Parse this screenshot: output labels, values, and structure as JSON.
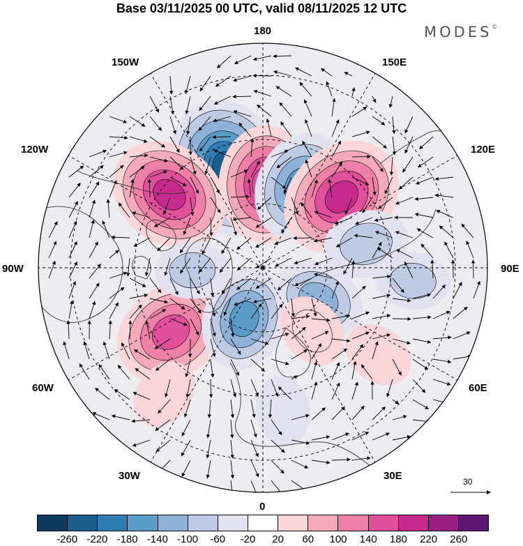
{
  "title": "Base 03/11/2025 00 UTC, valid 08/11/2025 12 UTC",
  "brand": {
    "name": "MODES",
    "mark": "©"
  },
  "longitude_labels": {
    "lon_180": "180",
    "lon_150W": "150W",
    "lon_150E": "150E",
    "lon_120W": "120W",
    "lon_120E": "120E",
    "lon_90W": "90W",
    "lon_90E": "90E",
    "lon_60W": "60W",
    "lon_60E": "60E",
    "lon_30W": "30W",
    "lon_30E": "30E",
    "lon_0": "0"
  },
  "reference_vector": {
    "label": "30"
  },
  "colorbar": {
    "colors": [
      "#0e3b5e",
      "#1b5e8e",
      "#2f7db4",
      "#5a9cc8",
      "#8fb3d8",
      "#bfcbe4",
      "#e3e2f0",
      "#ffffff",
      "#fbd6d8",
      "#f4aab8",
      "#ee7fa6",
      "#e0509a",
      "#c52a8c",
      "#991f84",
      "#5e1775"
    ],
    "ticks": [
      "-260",
      "-220",
      "-180",
      "-140",
      "-100",
      "-60",
      "-20",
      "20",
      "60",
      "100",
      "140",
      "180",
      "220",
      "260"
    ]
  },
  "field_anomalies": [
    {
      "name": "low-anomaly-nw-pacific-strong",
      "lon": -160,
      "lat_from_pole": 33,
      "value": -240
    },
    {
      "name": "high-anomaly-dateline",
      "lon": 178,
      "lat_from_pole": 26,
      "value": 180
    },
    {
      "name": "low-anomaly-bering",
      "lon": 155,
      "lat_from_pole": 28,
      "value": -160
    },
    {
      "name": "high-anomaly-east-siberia",
      "lon": 132,
      "lat_from_pole": 33,
      "value": 200
    },
    {
      "name": "high-anomaly-alaska",
      "lon": -128,
      "lat_from_pole": 37,
      "value": 190
    },
    {
      "name": "high-anomaly-greenland-sea",
      "lon": -55,
      "lat_from_pole": 35,
      "value": 170
    },
    {
      "name": "low-anomaly-norwegian-sea",
      "lon": -20,
      "lat_from_pole": 17,
      "value": -140
    },
    {
      "name": "low-anomaly-siberia",
      "lon": 60,
      "lat_from_pole": 20,
      "value": -110
    },
    {
      "name": "low-anomaly-east-asia",
      "lon": 103,
      "lat_from_pole": 33,
      "value": -90
    },
    {
      "name": "high-anomaly-ural",
      "lon": 38,
      "lat_from_pole": 25,
      "value": 60
    },
    {
      "name": "high-anomaly-central-asia",
      "lon": 53,
      "lat_from_pole": 45,
      "value": 50
    },
    {
      "name": "low-anomaly-europe",
      "lon": 8,
      "lat_from_pole": 45,
      "value": -50
    },
    {
      "name": "low-anomaly-canada",
      "lon": -88,
      "lat_from_pole": 22,
      "value": -60
    },
    {
      "name": "high-anomaly-atlantic",
      "lon": -38,
      "lat_from_pole": 50,
      "value": 50
    },
    {
      "name": "low-anomaly-far-east-asia",
      "lon": 85,
      "lat_from_pole": 47,
      "value": -60
    }
  ]
}
